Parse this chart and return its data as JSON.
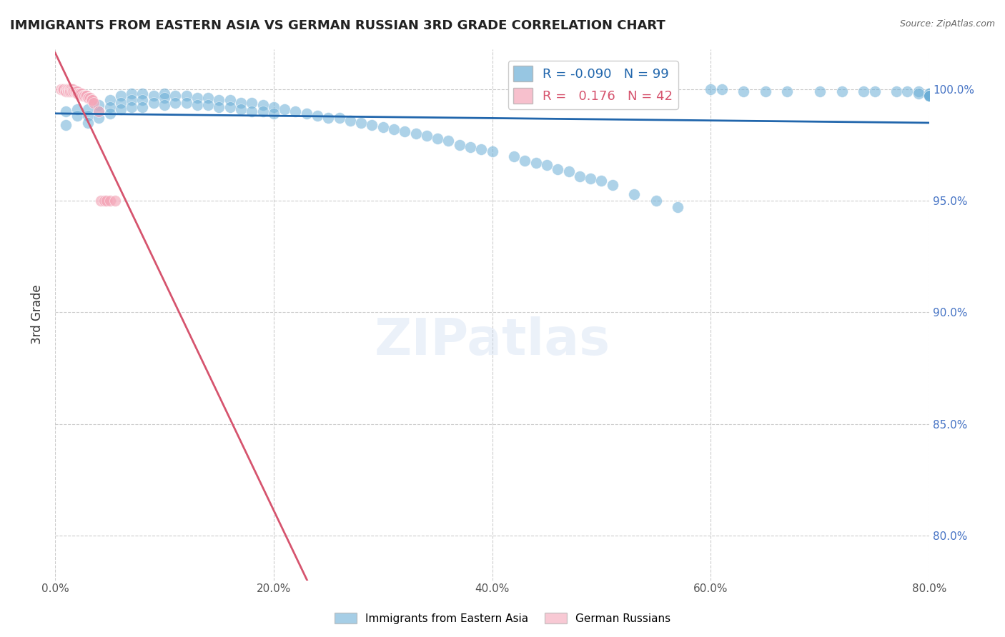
{
  "title": "IMMIGRANTS FROM EASTERN ASIA VS GERMAN RUSSIAN 3RD GRADE CORRELATION CHART",
  "source": "Source: ZipAtlas.com",
  "xlabel_ticks": [
    "0.0%",
    "20.0%",
    "40.0%",
    "60.0%",
    "80.0%"
  ],
  "xlabel_tick_vals": [
    0.0,
    0.2,
    0.4,
    0.6,
    0.8
  ],
  "ylabel_ticks": [
    "80.0%",
    "85.0%",
    "90.0%",
    "95.0%",
    "100.0%"
  ],
  "ylabel_tick_vals": [
    0.8,
    0.85,
    0.9,
    0.95,
    1.0
  ],
  "xlim": [
    0.0,
    0.8
  ],
  "ylim": [
    0.78,
    1.018
  ],
  "ylabel": "3rd Grade",
  "xlabel_label": "Immigrants from Eastern Asia",
  "legend_label2": "German Russians",
  "blue_R": "-0.090",
  "blue_N": "99",
  "pink_R": "0.176",
  "pink_N": "42",
  "blue_color": "#6baed6",
  "pink_color": "#f4a6b8",
  "blue_line_color": "#2166ac",
  "pink_line_color": "#d6546e",
  "watermark": "ZIPatlas",
  "blue_points_x": [
    0.01,
    0.01,
    0.02,
    0.02,
    0.03,
    0.03,
    0.03,
    0.04,
    0.04,
    0.04,
    0.05,
    0.05,
    0.05,
    0.06,
    0.06,
    0.06,
    0.07,
    0.07,
    0.07,
    0.08,
    0.08,
    0.08,
    0.09,
    0.09,
    0.1,
    0.1,
    0.1,
    0.11,
    0.11,
    0.12,
    0.12,
    0.13,
    0.13,
    0.14,
    0.14,
    0.15,
    0.15,
    0.16,
    0.16,
    0.17,
    0.17,
    0.18,
    0.18,
    0.19,
    0.19,
    0.2,
    0.2,
    0.21,
    0.22,
    0.23,
    0.24,
    0.25,
    0.26,
    0.27,
    0.28,
    0.29,
    0.3,
    0.31,
    0.32,
    0.33,
    0.34,
    0.35,
    0.36,
    0.37,
    0.38,
    0.39,
    0.4,
    0.42,
    0.43,
    0.44,
    0.45,
    0.46,
    0.47,
    0.48,
    0.49,
    0.5,
    0.51,
    0.53,
    0.55,
    0.57,
    0.6,
    0.61,
    0.63,
    0.65,
    0.67,
    0.7,
    0.72,
    0.74,
    0.75,
    0.77,
    0.78,
    0.79,
    0.79,
    0.8,
    0.8,
    0.8,
    0.8,
    0.8,
    0.8
  ],
  "blue_points_y": [
    0.99,
    0.984,
    0.991,
    0.988,
    0.991,
    0.988,
    0.985,
    0.993,
    0.99,
    0.987,
    0.995,
    0.992,
    0.989,
    0.997,
    0.994,
    0.991,
    0.998,
    0.995,
    0.992,
    0.998,
    0.995,
    0.992,
    0.997,
    0.994,
    0.998,
    0.996,
    0.993,
    0.997,
    0.994,
    0.997,
    0.994,
    0.996,
    0.993,
    0.996,
    0.993,
    0.995,
    0.992,
    0.995,
    0.992,
    0.994,
    0.991,
    0.994,
    0.99,
    0.993,
    0.99,
    0.992,
    0.989,
    0.991,
    0.99,
    0.989,
    0.988,
    0.987,
    0.987,
    0.986,
    0.985,
    0.984,
    0.983,
    0.982,
    0.981,
    0.98,
    0.979,
    0.978,
    0.977,
    0.975,
    0.974,
    0.973,
    0.972,
    0.97,
    0.968,
    0.967,
    0.966,
    0.964,
    0.963,
    0.961,
    0.96,
    0.959,
    0.957,
    0.953,
    0.95,
    0.947,
    1.0,
    1.0,
    0.999,
    0.999,
    0.999,
    0.999,
    0.999,
    0.999,
    0.999,
    0.999,
    0.999,
    0.999,
    0.998,
    0.998,
    0.998,
    0.997,
    0.997,
    0.997,
    0.997
  ],
  "pink_points_x": [
    0.005,
    0.007,
    0.008,
    0.01,
    0.01,
    0.011,
    0.012,
    0.012,
    0.013,
    0.013,
    0.014,
    0.014,
    0.015,
    0.015,
    0.016,
    0.016,
    0.017,
    0.018,
    0.019,
    0.02,
    0.02,
    0.021,
    0.022,
    0.023,
    0.024,
    0.025,
    0.026,
    0.027,
    0.028,
    0.029,
    0.03,
    0.031,
    0.032,
    0.033,
    0.034,
    0.035,
    0.04,
    0.042,
    0.045,
    0.047,
    0.05,
    0.055
  ],
  "pink_points_y": [
    1.0,
    1.0,
    1.0,
    1.0,
    0.999,
    1.0,
    1.0,
    0.999,
    1.0,
    0.999,
    1.0,
    0.999,
    1.0,
    0.999,
    1.0,
    0.999,
    0.999,
    0.999,
    0.999,
    0.999,
    0.998,
    0.998,
    0.998,
    0.998,
    0.998,
    0.997,
    0.997,
    0.997,
    0.997,
    0.997,
    0.996,
    0.996,
    0.996,
    0.995,
    0.995,
    0.994,
    0.99,
    0.95,
    0.95,
    0.95,
    0.95,
    0.95
  ]
}
